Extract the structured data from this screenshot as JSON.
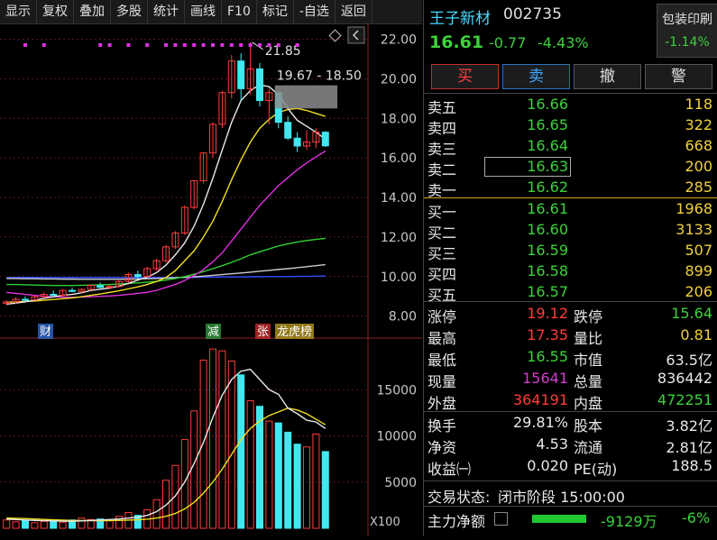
{
  "toolbar": [
    "显示",
    "复权",
    "叠加",
    "多股",
    "统计",
    "画线",
    "F10",
    "标记",
    "-自选",
    "返回"
  ],
  "stock": {
    "name": "王子新材",
    "code": "002735",
    "price": "16.61",
    "change": "-0.77",
    "change_pct": "-4.43%"
  },
  "sector": {
    "name": "包装印刷",
    "change": "-1.14%"
  },
  "trade_buttons": [
    "买",
    "卖",
    "撤",
    "警"
  ],
  "ask": [
    {
      "label": "卖五",
      "price": "16.66",
      "vol": "118"
    },
    {
      "label": "卖四",
      "price": "16.65",
      "vol": "322"
    },
    {
      "label": "卖三",
      "price": "16.64",
      "vol": "668"
    },
    {
      "label": "卖二",
      "price": "16.63",
      "vol": "200"
    },
    {
      "label": "卖一",
      "price": "16.62",
      "vol": "285"
    }
  ],
  "bid": [
    {
      "label": "买一",
      "price": "16.61",
      "vol": "1968"
    },
    {
      "label": "买二",
      "price": "16.60",
      "vol": "3133"
    },
    {
      "label": "买三",
      "price": "16.59",
      "vol": "507"
    },
    {
      "label": "买四",
      "price": "16.58",
      "vol": "899"
    },
    {
      "label": "买五",
      "price": "16.57",
      "vol": "206"
    }
  ],
  "stats": [
    {
      "l1": "涨停",
      "v1": "19.12",
      "l2": "跌停",
      "v2": "15.64"
    },
    {
      "l1": "最高",
      "v1": "17.35",
      "l2": "量比",
      "v2": "0.81"
    },
    {
      "l1": "最低",
      "v1": "16.55",
      "l2": "市值",
      "v2": "63.5亿"
    },
    {
      "l1": "现量",
      "v1": "15641",
      "l2": "总量",
      "v2": "836442"
    },
    {
      "l1": "外盘",
      "v1": "364191",
      "l2": "内盘",
      "v2": "472251"
    }
  ],
  "stats2": [
    {
      "l1": "换手",
      "v1": "29.81%",
      "l2": "股本",
      "v2": "3.82亿"
    },
    {
      "l1": "净资",
      "v1": "4.53",
      "l2": "流通",
      "v2": "2.81亿"
    },
    {
      "l1": "收益㈠",
      "v1": "0.020",
      "l2": "PE(动)",
      "v2": "188.5"
    }
  ],
  "status": {
    "label": "交易状态:",
    "value": "闭市阶段 15:00:00"
  },
  "main_flow": {
    "label": "主力净额",
    "value": "-9129万",
    "pct": "-6%"
  },
  "colors": {
    "up": "#ff3c3c",
    "down": "#3cd23c",
    "vol_down": "#40e8f0",
    "ma5": "#e8e8e8",
    "ma10": "#f0e020",
    "ma20": "#e030e0",
    "ma60": "#30d030"
  },
  "chart_data": {
    "type": "candlestick",
    "price_axis": [
      "22.00",
      "20.00",
      "18.00",
      "16.00",
      "14.00",
      "12.00",
      "10.00",
      "8.00"
    ],
    "price_ylim": [
      7.3,
      22.8
    ],
    "vol_axis": [
      "15000",
      "10000",
      "5000"
    ],
    "vol_ylim": [
      0,
      20000
    ],
    "vol_unit": "X100",
    "high_label": "21.85",
    "range_label": "19.67 - 18.50",
    "event_markers": [
      "财",
      "减",
      "张",
      "龙虎榜"
    ],
    "candles": [
      [
        8.65,
        8.8,
        8.55,
        8.72
      ],
      [
        8.72,
        8.95,
        8.6,
        8.85
      ],
      [
        8.85,
        9.0,
        8.75,
        8.82
      ],
      [
        8.82,
        9.05,
        8.8,
        8.98
      ],
      [
        8.98,
        9.2,
        8.9,
        9.1
      ],
      [
        9.1,
        9.3,
        9.0,
        9.05
      ],
      [
        9.05,
        9.35,
        9.0,
        9.3
      ],
      [
        9.3,
        9.45,
        9.2,
        9.25
      ],
      [
        9.25,
        9.4,
        9.15,
        9.35
      ],
      [
        9.35,
        9.6,
        9.3,
        9.55
      ],
      [
        9.55,
        9.7,
        9.4,
        9.45
      ],
      [
        9.45,
        9.6,
        9.35,
        9.5
      ],
      [
        9.5,
        9.8,
        9.45,
        9.75
      ],
      [
        9.75,
        10.2,
        9.7,
        10.1
      ],
      [
        10.1,
        10.3,
        9.9,
        10.0
      ],
      [
        10.0,
        10.5,
        9.95,
        10.4
      ],
      [
        10.4,
        10.9,
        10.3,
        10.8
      ],
      [
        10.8,
        11.6,
        10.7,
        11.5
      ],
      [
        11.5,
        12.3,
        11.4,
        12.2
      ],
      [
        12.2,
        13.6,
        12.1,
        13.5
      ],
      [
        13.5,
        14.9,
        13.4,
        14.85
      ],
      [
        14.85,
        16.3,
        14.7,
        16.25
      ],
      [
        16.25,
        17.8,
        16.0,
        17.7
      ],
      [
        17.7,
        19.4,
        17.5,
        19.3
      ],
      [
        19.3,
        21.2,
        19.0,
        20.9
      ],
      [
        20.9,
        21.3,
        18.9,
        19.5
      ],
      [
        19.5,
        21.85,
        19.2,
        20.5
      ],
      [
        20.5,
        20.8,
        18.6,
        18.9
      ],
      [
        18.9,
        19.5,
        17.7,
        19.3
      ],
      [
        19.3,
        19.4,
        17.5,
        17.8
      ],
      [
        17.8,
        18.1,
        16.9,
        17.0
      ],
      [
        17.0,
        17.3,
        16.3,
        16.6
      ],
      [
        16.6,
        17.4,
        16.4,
        16.8
      ],
      [
        16.8,
        17.5,
        16.5,
        17.3
      ],
      [
        17.3,
        17.35,
        16.55,
        16.61
      ]
    ],
    "volumes": [
      900,
      700,
      850,
      600,
      750,
      800,
      650,
      900,
      1100,
      950,
      1000,
      800,
      1300,
      1700,
      1400,
      2000,
      3100,
      5200,
      6800,
      9600,
      12700,
      18200,
      19400,
      19200,
      18100,
      16600,
      13800,
      13200,
      11600,
      11400,
      10400,
      9100,
      8800,
      10200,
      8300
    ],
    "ma5": [
      8.6,
      8.66,
      8.72,
      8.8,
      8.9,
      8.98,
      9.05,
      9.1,
      9.18,
      9.3,
      9.36,
      9.42,
      9.52,
      9.65,
      9.82,
      9.96,
      10.2,
      10.58,
      11.1,
      11.7,
      12.55,
      13.66,
      14.97,
      16.4,
      17.8,
      18.9,
      19.4,
      19.7,
      19.6,
      19.2,
      18.5,
      17.9,
      17.6,
      17.3,
      16.95
    ],
    "ma10": [
      8.7,
      8.72,
      8.74,
      8.76,
      8.8,
      8.84,
      8.88,
      8.92,
      8.98,
      9.05,
      9.12,
      9.2,
      9.28,
      9.38,
      9.48,
      9.6,
      9.75,
      9.95,
      10.3,
      10.8,
      11.3,
      12.0,
      12.8,
      13.8,
      14.9,
      15.9,
      16.8,
      17.5,
      17.95,
      18.3,
      18.45,
      18.5,
      18.4,
      18.25,
      18.1
    ],
    "ma20": [
      9.2,
      9.15,
      9.1,
      9.05,
      9.0,
      8.98,
      8.96,
      8.95,
      8.96,
      8.98,
      9.0,
      9.02,
      9.05,
      9.1,
      9.15,
      9.2,
      9.3,
      9.45,
      9.6,
      9.8,
      10.05,
      10.35,
      10.75,
      11.2,
      11.8,
      12.4,
      13.0,
      13.6,
      14.1,
      14.6,
      15.0,
      15.4,
      15.75,
      16.05,
      16.35
    ],
    "ma60": [
      9.6,
      9.6,
      9.58,
      9.57,
      9.56,
      9.55,
      9.55,
      9.55,
      9.56,
      9.57,
      9.58,
      9.6,
      9.62,
      9.65,
      9.68,
      9.72,
      9.76,
      9.82,
      9.9,
      10.0,
      10.12,
      10.25,
      10.4,
      10.55,
      10.72,
      10.9,
      11.1,
      11.25,
      11.4,
      11.55,
      11.65,
      11.75,
      11.82,
      11.88,
      11.93
    ],
    "ma_long": [
      9.9,
      9.9,
      9.89,
      9.89,
      9.88,
      9.88,
      9.87,
      9.87,
      9.86,
      9.86,
      9.86,
      9.86,
      9.86,
      9.87,
      9.88,
      9.89,
      9.9,
      9.92,
      9.94,
      9.96,
      9.99,
      10.02,
      10.06,
      10.1,
      10.14,
      10.18,
      10.22,
      10.27,
      10.31,
      10.36,
      10.4,
      10.45,
      10.5,
      10.55,
      10.6
    ],
    "ma_base": [
      9.95,
      9.95,
      9.95,
      9.95,
      9.95,
      9.95,
      9.95,
      9.95,
      9.95,
      9.95,
      9.95,
      9.95,
      9.95,
      9.95,
      9.95,
      9.95,
      9.95,
      9.95,
      9.96,
      9.96,
      9.96,
      9.97,
      9.97,
      9.98,
      9.98,
      9.98,
      9.99,
      9.99,
      10.0,
      10.0,
      10.0,
      10.01,
      10.01,
      10.02,
      10.02
    ],
    "vol_ma5": [
      1000,
      950,
      900,
      850,
      820,
      800,
      780,
      760,
      800,
      850,
      900,
      950,
      1000,
      1100,
      1200,
      1400,
      1800,
      2500,
      3500,
      5000,
      7000,
      9300,
      12000,
      14400,
      16100,
      17000,
      17200,
      16100,
      15000,
      14500,
      13000,
      12400,
      11700,
      11500,
      10800
    ],
    "vol_ma10": [
      1100,
      1080,
      1050,
      1000,
      960,
      920,
      880,
      850,
      840,
      830,
      830,
      840,
      850,
      880,
      920,
      980,
      1100,
      1300,
      1600,
      2100,
      2800,
      3800,
      5000,
      6400,
      8000,
      9600,
      10800,
      11600,
      12200,
      12600,
      13000,
      12800,
      12400,
      11800,
      11200
    ]
  }
}
